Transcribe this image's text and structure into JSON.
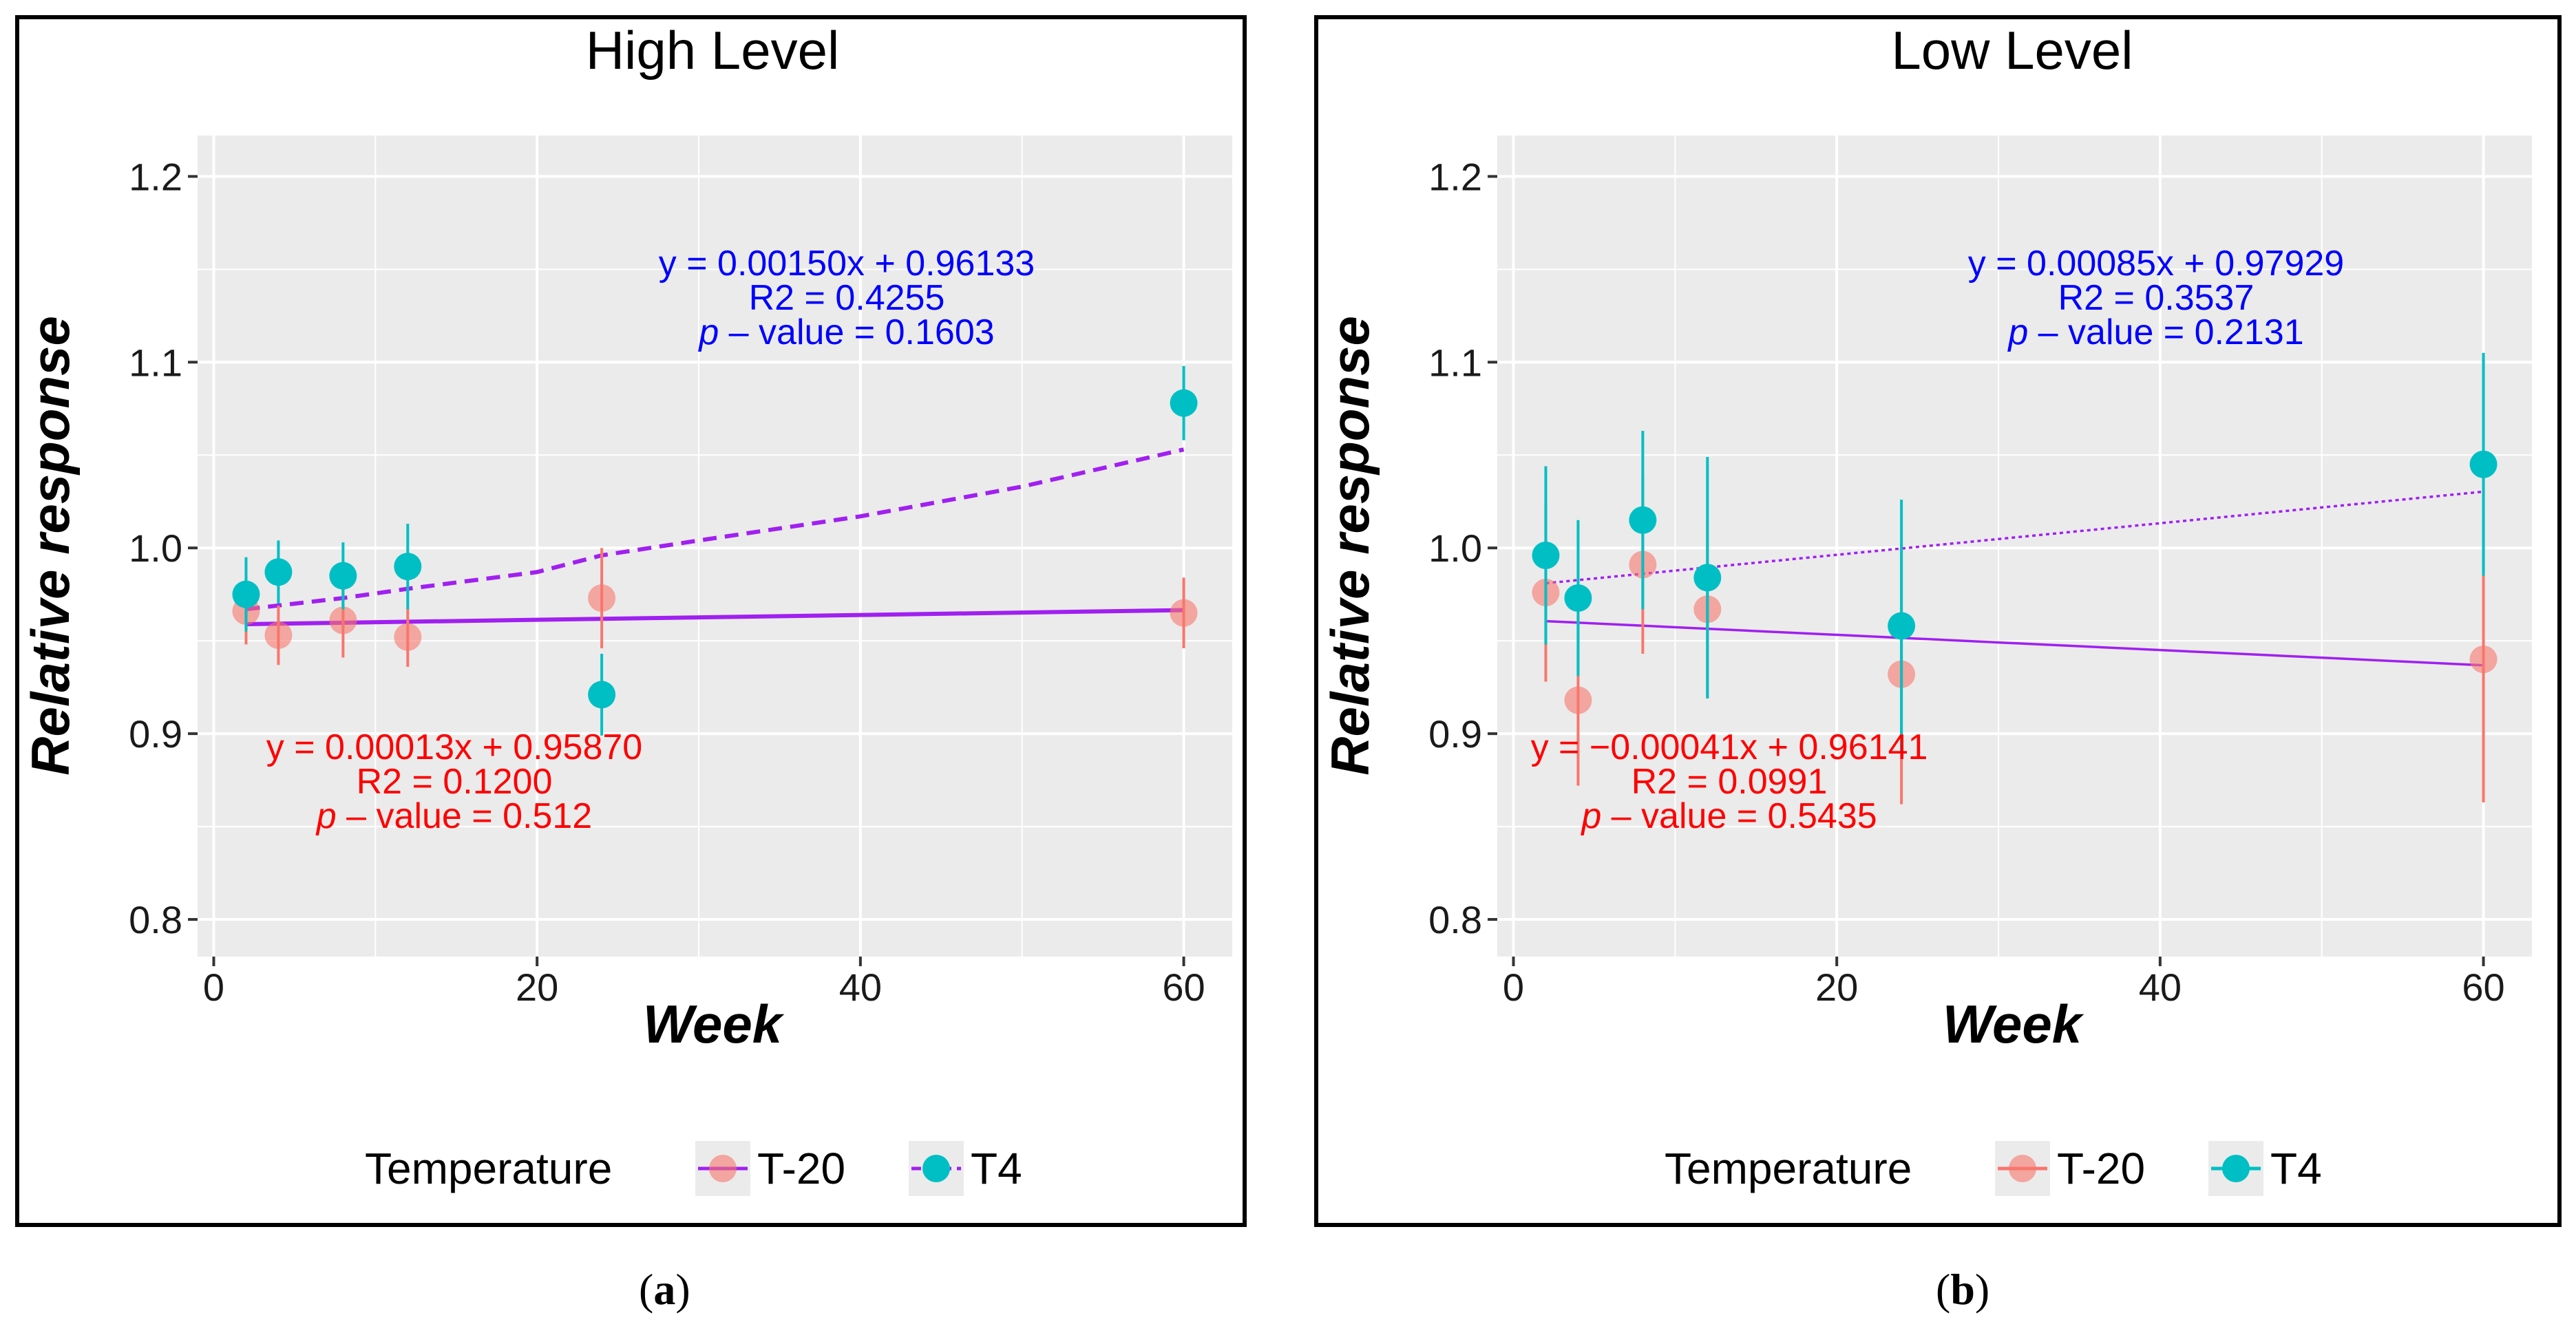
{
  "chart_data": [
    {
      "panel_label_open": "(",
      "panel_label_letter": "a",
      "panel_label_close": ")",
      "type": "scatter",
      "title": "High Level",
      "xlabel": "Week",
      "ylabel": "Relative response",
      "xlim": [
        -1,
        63
      ],
      "ylim": [
        0.78,
        1.222
      ],
      "x_ticks": [
        0,
        20,
        40,
        60
      ],
      "y_ticks": [
        0.8,
        0.9,
        1.0,
        1.1,
        1.2
      ],
      "x_tick_labels": [
        "0",
        "20",
        "40",
        "60"
      ],
      "y_tick_labels": [
        "0.8",
        "0.9",
        "1.0",
        "1.1",
        "1.2"
      ],
      "grid": true,
      "series": [
        {
          "name": "T-20",
          "color": "#F8766D",
          "points": [
            {
              "x": 2,
              "y": 0.966,
              "err": 0.018
            },
            {
              "x": 4,
              "y": 0.953,
              "err": 0.016
            },
            {
              "x": 8,
              "y": 0.961,
              "err": 0.02
            },
            {
              "x": 12,
              "y": 0.952,
              "err": 0.016
            },
            {
              "x": 24,
              "y": 0.973,
              "err": 0.027
            },
            {
              "x": 60,
              "y": 0.965,
              "err": 0.019
            }
          ],
          "fit": {
            "type": "linear",
            "slope": 0.00013,
            "intercept": 0.9587,
            "x_range": [
              2,
              60
            ],
            "line_style": "solid",
            "line_color": "#A020F0"
          },
          "annotation": {
            "line1": "y = 0.00013x + 0.95870",
            "line2": "R2 = 0.1200",
            "p_prefix": "p",
            "p_rest": " – value = 0.512",
            "color": "#FF0000"
          }
        },
        {
          "name": "T4",
          "color": "#00BFC4",
          "points": [
            {
              "x": 2,
              "y": 0.975,
              "err": 0.02
            },
            {
              "x": 4,
              "y": 0.987,
              "err": 0.017
            },
            {
              "x": 8,
              "y": 0.985,
              "err": 0.018
            },
            {
              "x": 12,
              "y": 0.99,
              "err": 0.023
            },
            {
              "x": 24,
              "y": 0.921,
              "err": 0.022
            },
            {
              "x": 60,
              "y": 1.078,
              "err": 0.02
            }
          ],
          "fit": {
            "type": "curve",
            "x": [
              2,
              8,
              12,
              20,
              24,
              30,
              40,
              50,
              60
            ],
            "y": [
              0.967,
              0.973,
              0.978,
              0.987,
              0.996,
              1.004,
              1.017,
              1.033,
              1.053
            ],
            "line_style": "dashed",
            "line_color": "#A020F0"
          },
          "annotation": {
            "line1": "y = 0.00150x + 0.96133",
            "line2": "R2 = 0.4255",
            "p_prefix": "p",
            "p_rest": " – value = 0.1603",
            "color": "#0000FF"
          }
        }
      ],
      "legend": {
        "title": "Temperature",
        "position": "bottom",
        "labels": [
          "T-20",
          "T4"
        ]
      }
    },
    {
      "panel_label_open": "(",
      "panel_label_letter": "b",
      "panel_label_close": ")",
      "type": "scatter",
      "title": "Low Level",
      "xlabel": "Week",
      "ylabel": "Relative response",
      "xlim": [
        -1,
        63
      ],
      "ylim": [
        0.78,
        1.222
      ],
      "x_ticks": [
        0,
        20,
        40,
        60
      ],
      "y_ticks": [
        0.8,
        0.9,
        1.0,
        1.1,
        1.2
      ],
      "x_tick_labels": [
        "0",
        "20",
        "40",
        "60"
      ],
      "y_tick_labels": [
        "0.8",
        "0.9",
        "1.0",
        "1.1",
        "1.2"
      ],
      "grid": true,
      "series": [
        {
          "name": "T-20",
          "color": "#F8766D",
          "points": [
            {
              "x": 2,
              "y": 0.976,
              "err": 0.048
            },
            {
              "x": 4,
              "y": 0.918,
              "err": 0.046
            },
            {
              "x": 8,
              "y": 0.991,
              "err": 0.048
            },
            {
              "x": 12,
              "y": 0.967,
              "err": 0.048
            },
            {
              "x": 24,
              "y": 0.932,
              "err": 0.07
            },
            {
              "x": 60,
              "y": 0.94,
              "err": 0.077
            }
          ],
          "fit": {
            "type": "linear",
            "slope": -0.00041,
            "intercept": 0.96141,
            "x_range": [
              2,
              60
            ],
            "line_style": "solid",
            "line_color": "#A020F0"
          },
          "annotation": {
            "line1": "y = −0.00041x + 0.96141",
            "line2": "R2 = 0.0991",
            "p_prefix": "p",
            "p_rest": " – value = 0.5435",
            "color": "#FF0000"
          }
        },
        {
          "name": "T4",
          "color": "#00BFC4",
          "points": [
            {
              "x": 2,
              "y": 0.996,
              "err": 0.048
            },
            {
              "x": 4,
              "y": 0.973,
              "err": 0.042
            },
            {
              "x": 8,
              "y": 1.015,
              "err": 0.048
            },
            {
              "x": 12,
              "y": 0.984,
              "err": 0.065
            },
            {
              "x": 24,
              "y": 0.958,
              "err": 0.068
            },
            {
              "x": 60,
              "y": 1.045,
              "err": 0.06
            }
          ],
          "fit": {
            "type": "linear",
            "slope": 0.00085,
            "intercept": 0.97929,
            "x_range": [
              2,
              60
            ],
            "line_style": "dotted",
            "line_color": "#A020F0"
          },
          "annotation": {
            "line1": "y = 0.00085x + 0.97929",
            "line2": "R2 = 0.3537",
            "p_prefix": "p",
            "p_rest": " – value = 0.2131",
            "color": "#0000FF"
          }
        }
      ],
      "legend": {
        "title": "Temperature",
        "position": "bottom",
        "labels": [
          "T-20",
          "T4"
        ]
      }
    }
  ],
  "colors": {
    "panel_background": "#EBEBEB",
    "grid": "#FFFFFF",
    "frame": "#000000",
    "tick_text": "#1A1A1A"
  }
}
